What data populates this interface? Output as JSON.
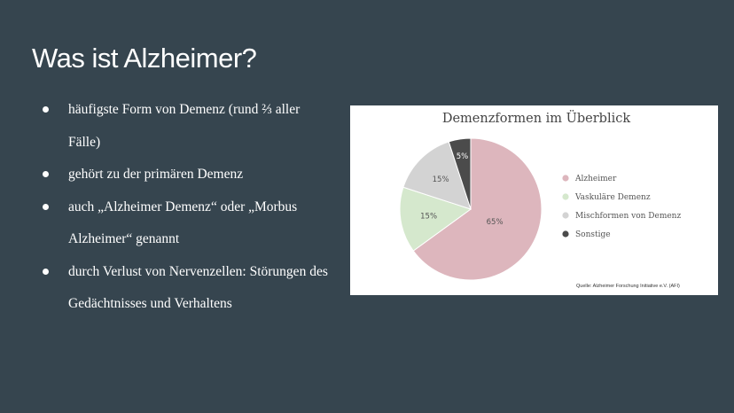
{
  "slide": {
    "title": "Was ist Alzheimer?",
    "bullets": [
      "häufigste Form von Demenz (rund ⅔ aller Fälle)",
      "gehört zu der primären Demenz",
      "auch „Alzheimer Demenz“  oder „Morbus Alzheimer“ genannt",
      "durch Verlust von Nervenzellen: Störungen des Gedächtnisses und Verhaltens"
    ]
  },
  "chart_data": {
    "type": "pie",
    "title": "Demenzformen im Überblick",
    "source": "Quelle: Alzheimer Forschung Initiative e.V. (AFI)",
    "legend_position": "right",
    "slices": [
      {
        "label": "Alzheimer",
        "value": 65,
        "value_label": "65%",
        "color": "#ddb6bd"
      },
      {
        "label": "Vaskuläre Demenz",
        "value": 15,
        "value_label": "15%",
        "color": "#d5e8cd"
      },
      {
        "label": "Mischformen von Demenz",
        "value": 15,
        "value_label": "15%",
        "color": "#d3d3d3"
      },
      {
        "label": "Sonstige",
        "value": 5,
        "value_label": "5%",
        "color": "#4b4b4b"
      }
    ]
  }
}
